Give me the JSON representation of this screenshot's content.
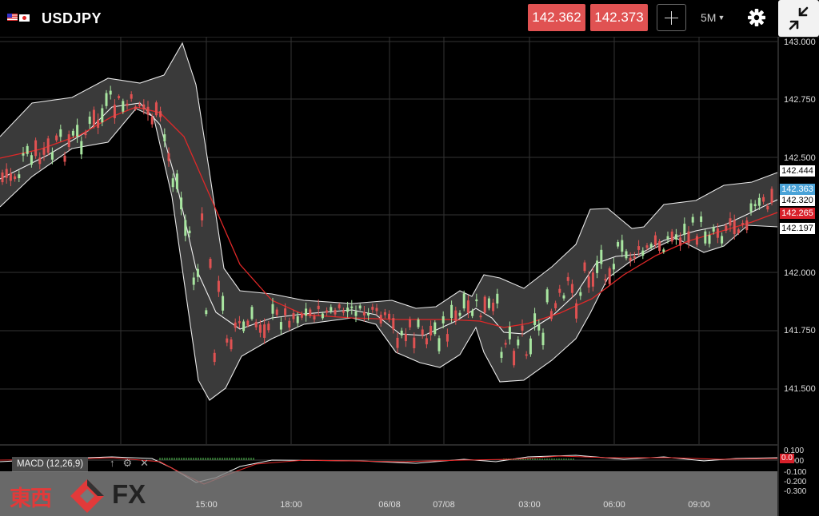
{
  "header": {
    "symbol": "USDJPY",
    "bid": "142.362",
    "ask": "142.373",
    "timeframe": "5M",
    "icons": [
      "us-flag-icon",
      "japan-flag-icon",
      "crosshair-icon",
      "caret-down-icon",
      "gear-icon",
      "collapse-icon"
    ]
  },
  "chart": {
    "y_ticks": [
      "143.000",
      "142.750",
      "142.500",
      "142.000",
      "141.750",
      "141.500"
    ],
    "price_tags": [
      {
        "label": "142.444",
        "bg": "#ffffff",
        "fg": "#000000"
      },
      {
        "label": "142.363",
        "bg": "#4aa3d8",
        "fg": "#ffffff"
      },
      {
        "label": "142.320",
        "bg": "#ffffff",
        "fg": "#000000"
      },
      {
        "label": "142.265",
        "bg": "#d8202a",
        "fg": "#ffffff"
      },
      {
        "label": "142.197",
        "bg": "#ffffff",
        "fg": "#000000"
      }
    ],
    "x_ticks": [
      "15:00",
      "18:00",
      "06/08",
      "07/08",
      "03:00",
      "06:00",
      "09:00"
    ],
    "colors": {
      "up": "#a8e6a0",
      "down": "#e05252",
      "band": "#777777",
      "ma": "#e02828"
    }
  },
  "macd": {
    "label": "MACD (12,26,9)",
    "icons": [
      "arrow-up-icon",
      "gear-icon",
      "close-icon"
    ],
    "y_ticks": [
      "0.100",
      "0.000",
      "-0.100",
      "-0.200",
      "-0.300"
    ],
    "current_tag": "0.0"
  },
  "watermark": {
    "kanji": "東西",
    "fx": "FX"
  }
}
